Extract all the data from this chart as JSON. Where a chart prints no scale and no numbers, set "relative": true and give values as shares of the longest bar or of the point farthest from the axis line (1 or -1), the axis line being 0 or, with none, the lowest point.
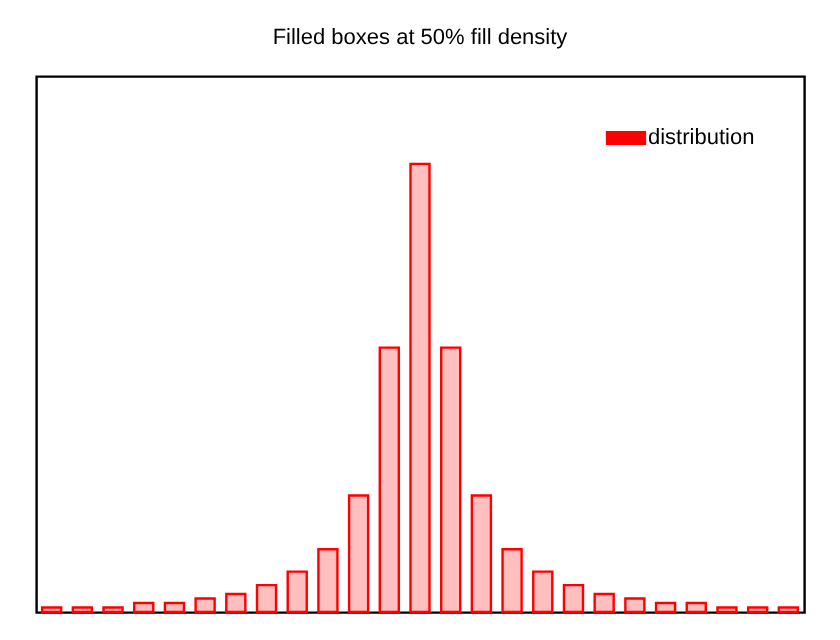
{
  "chart_data": {
    "type": "bar",
    "title": "Filled boxes at 50% fill density",
    "relative": true,
    "legend": "top right",
    "categories": [
      null,
      null,
      null,
      null,
      null,
      null,
      null,
      null,
      null,
      null,
      null,
      null,
      null,
      null,
      null,
      null,
      null,
      null,
      null,
      null,
      null,
      null,
      null,
      null,
      null
    ],
    "series": [
      {
        "name": "distribution",
        "color": "#ff0000",
        "values": [
          0.01,
          0.01,
          0.01,
          0.02,
          0.02,
          0.03,
          0.04,
          0.06,
          0.09,
          0.14,
          0.26,
          0.59,
          1,
          0.59,
          0.26,
          0.14,
          0.09,
          0.06,
          0.04,
          0.03,
          0.02,
          0.02,
          0.01,
          0.01,
          0.01
        ]
      }
    ]
  }
}
